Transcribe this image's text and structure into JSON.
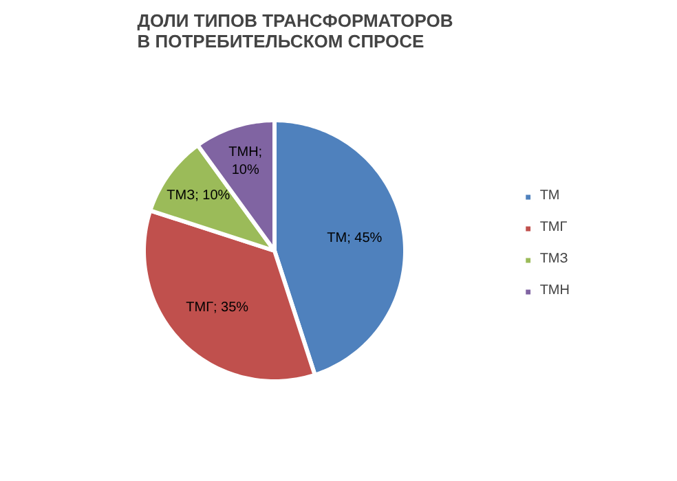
{
  "chart_data": {
    "type": "pie",
    "title": "ДОЛИ ТИПОВ ТРАНСФОРМАТОРОВ\nВ ПОТРЕБИТЕЛЬСКОМ СПРОСЕ",
    "categories": [
      "ТМ",
      "ТМГ",
      "ТМЗ",
      "ТМН"
    ],
    "values": [
      45,
      35,
      10,
      10
    ],
    "colors": [
      "#4f81bd",
      "#c0504d",
      "#9bbb59",
      "#8064a2"
    ],
    "value_labels": [
      "ТМ; 45%",
      "ТМГ; 35%",
      "ТМЗ; 10%",
      "ТМН;\n10%"
    ],
    "legend": "right"
  }
}
